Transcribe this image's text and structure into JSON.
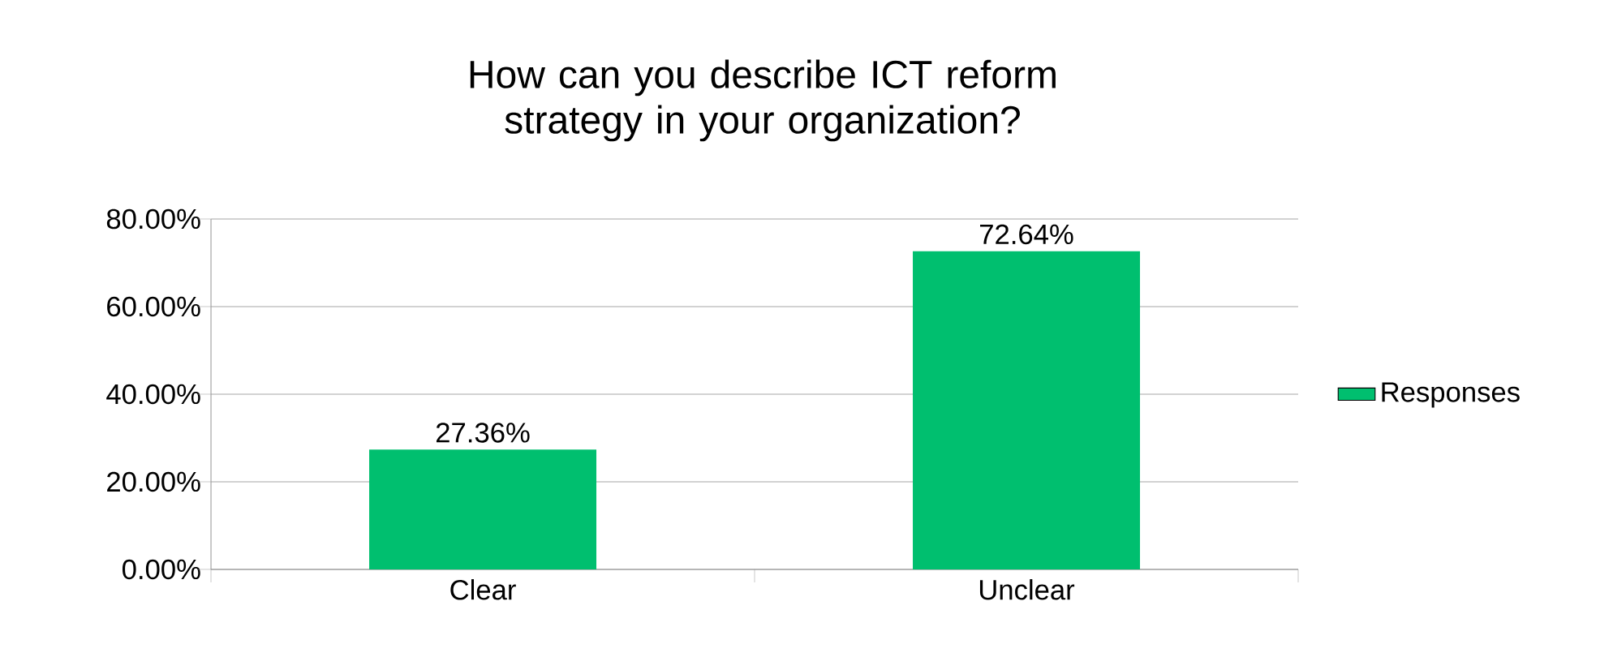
{
  "chart_data": {
    "type": "bar",
    "title": "How can you describe ICT reform strategy in your organization?",
    "categories": [
      "Clear",
      "Unclear"
    ],
    "series": [
      {
        "name": "Responses",
        "color": "#00bf6f",
        "values": [
          27.36,
          72.64
        ],
        "value_labels": [
          "27.36%",
          "72.64%"
        ]
      }
    ],
    "ylim": [
      0,
      80
    ],
    "yticks": [
      {
        "value": 0,
        "label": "0.00%"
      },
      {
        "value": 20,
        "label": "20.00%"
      },
      {
        "value": 40,
        "label": "40.00%"
      },
      {
        "value": 60,
        "label": "60.00%"
      },
      {
        "value": 80,
        "label": "80.00%"
      }
    ],
    "grid": "y",
    "legend": "right"
  }
}
